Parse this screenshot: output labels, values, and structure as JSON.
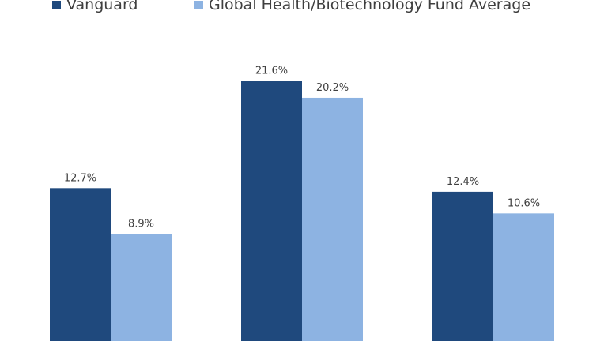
{
  "chart_data": {
    "type": "bar",
    "categories": [
      "",
      "",
      ""
    ],
    "series": [
      {
        "name": "Vanguard",
        "color": "#1f497d",
        "values": [
          12.7,
          21.6,
          12.4
        ],
        "labels": [
          "12.7%",
          "21.6%",
          "12.4%"
        ]
      },
      {
        "name": "Global Health/Biotechnology Fund Average",
        "color": "#8db3e2",
        "values": [
          8.9,
          20.2,
          10.6
        ],
        "labels": [
          "8.9%",
          "20.2%",
          "10.6%"
        ]
      }
    ],
    "title": "",
    "xlabel": "",
    "ylabel": "",
    "legend_position": "top",
    "grid": false,
    "value_format": "percent"
  }
}
